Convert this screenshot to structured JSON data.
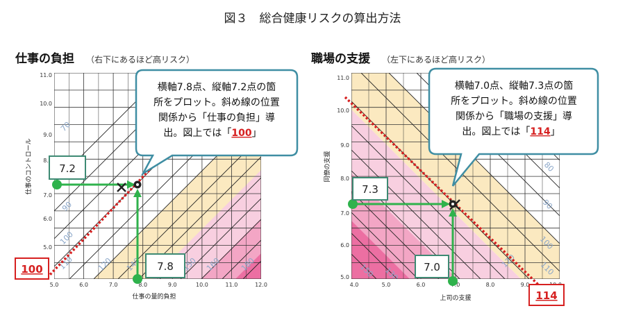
{
  "figure_title": "図３　総合健康リスクの算出方法",
  "colors": {
    "zone_yellow": "#fbe9c0",
    "zone_pink_light": "#f8cfe0",
    "zone_pink_mid": "#f3a6c5",
    "zone_pink_dark": "#ec6fa2",
    "grid": "#333333",
    "callout_border": "#3f8ea3",
    "green": "#2fb24c",
    "red": "#d62020",
    "value_label_color": "#8aa6c8"
  },
  "panels": [
    {
      "id": "left",
      "title": "仕事の負担",
      "subtitle": "（右下にあるほど高リスク）",
      "xlabel": "仕事の量的負担",
      "ylabel": "仕事のコントロール",
      "x_ticks": [
        "5.0",
        "6.0",
        "7.0",
        "8.0",
        "9.0",
        "10.0",
        "11.0",
        "12.0"
      ],
      "y_ticks": [
        "5.0",
        "6.0",
        "7.0",
        "8.0",
        "9.0",
        "10.0",
        "11.0"
      ],
      "contour_labels": [
        "70",
        "90",
        "100",
        "110",
        "120",
        "140",
        "150",
        "160",
        "180"
      ],
      "point": {
        "x": 7.8,
        "y": 7.2
      },
      "x_value": "7.8",
      "y_value": "7.2",
      "callout": {
        "lines": [
          "横軸7.8点、縦軸7.2点の箇",
          "所をプロット。斜め線の位置",
          "関係から「仕事の負担」導"
        ],
        "last_pre": "出。図上では「",
        "last_value": "100",
        "last_post": "」"
      },
      "result": "100"
    },
    {
      "id": "right",
      "title": "職場の支援",
      "subtitle": "（左下にあるほど高リスク）",
      "xlabel": "上司の支援",
      "ylabel": "同僚の支援",
      "x_ticks": [
        "4.0",
        "5.0",
        "6.0",
        "7.0",
        "8.0",
        "9.0",
        "10.0"
      ],
      "y_ticks": [
        "5.0",
        "6.0",
        "7.0",
        "8.0",
        "9.0",
        "10.0",
        "11.0"
      ],
      "contour_labels": [
        "80",
        "90",
        "100",
        "110",
        "120",
        "130",
        "150"
      ],
      "point": {
        "x": 7.0,
        "y": 7.3
      },
      "x_value": "7.0",
      "y_value": "7.3",
      "callout": {
        "lines": [
          "横軸7.0点、縦軸7.3点の箇",
          "所をプロット。斜め線の位置",
          "関係から「職場の支援」導"
        ],
        "last_pre": "出。図上では「",
        "last_value": "114",
        "last_post": "」"
      },
      "result": "114"
    }
  ]
}
